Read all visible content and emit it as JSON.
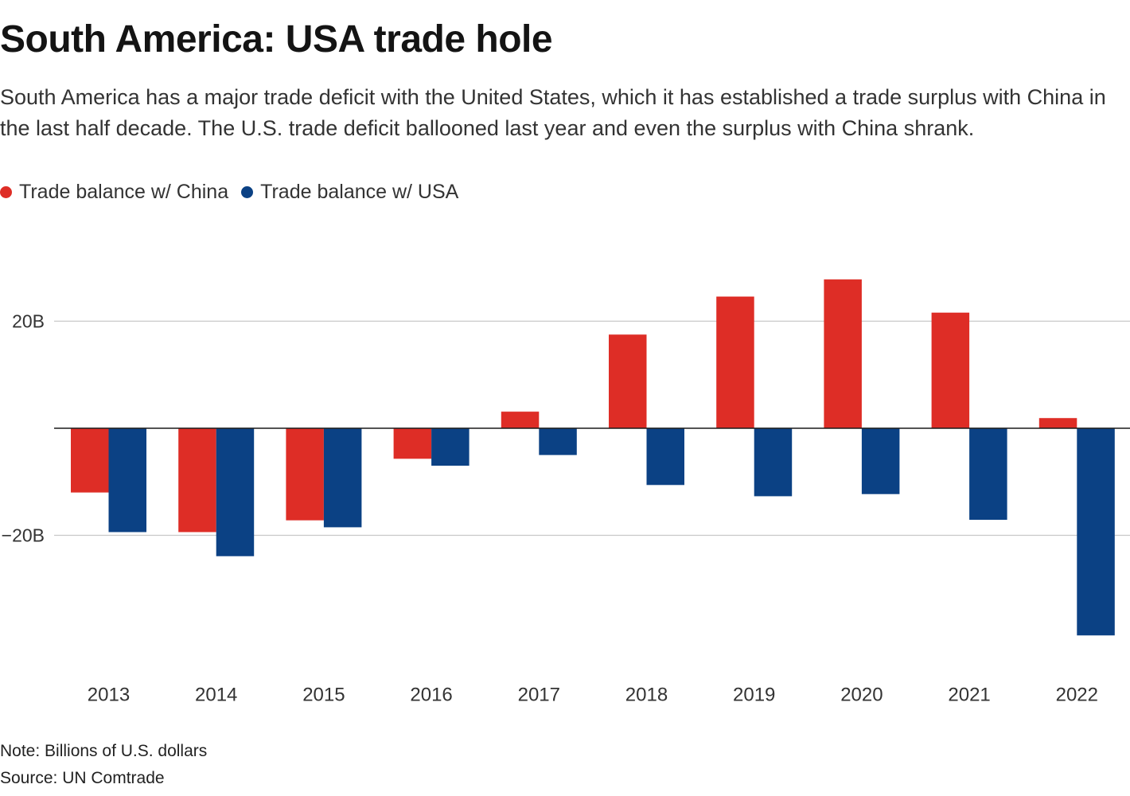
{
  "title": "South America: USA trade hole",
  "subtitle": "South America has a major trade deficit with the United States, which it has established a trade surplus with China in the last half decade. The U.S. trade deficit ballooned last year and even the surplus with China shrank.",
  "colors": {
    "china": "#DE2D26",
    "usa": "#0B4184"
  },
  "chart_data": {
    "type": "bar",
    "categories": [
      "2013",
      "2014",
      "2015",
      "2016",
      "2017",
      "2018",
      "2019",
      "2020",
      "2021",
      "2022"
    ],
    "series": [
      {
        "name": "Trade balance w/ China",
        "color": "#DE2D26",
        "values": [
          -12.0,
          -19.4,
          -17.2,
          -5.7,
          3.1,
          17.5,
          24.6,
          27.8,
          21.6,
          1.9
        ]
      },
      {
        "name": "Trade balance w/ USA",
        "color": "#0B4184",
        "values": [
          -19.4,
          -23.9,
          -18.5,
          -7.0,
          -5.0,
          -10.6,
          -12.7,
          -12.3,
          -17.1,
          -38.7
        ]
      }
    ],
    "yticks": [
      20,
      -20
    ],
    "ytick_labels": [
      "20B",
      "−20B"
    ],
    "ylim": [
      -45,
      38
    ],
    "grid": true,
    "legend_position": "top-left",
    "note": "Note: Billions of U.S. dollars",
    "source": "Source: UN Comtrade"
  }
}
